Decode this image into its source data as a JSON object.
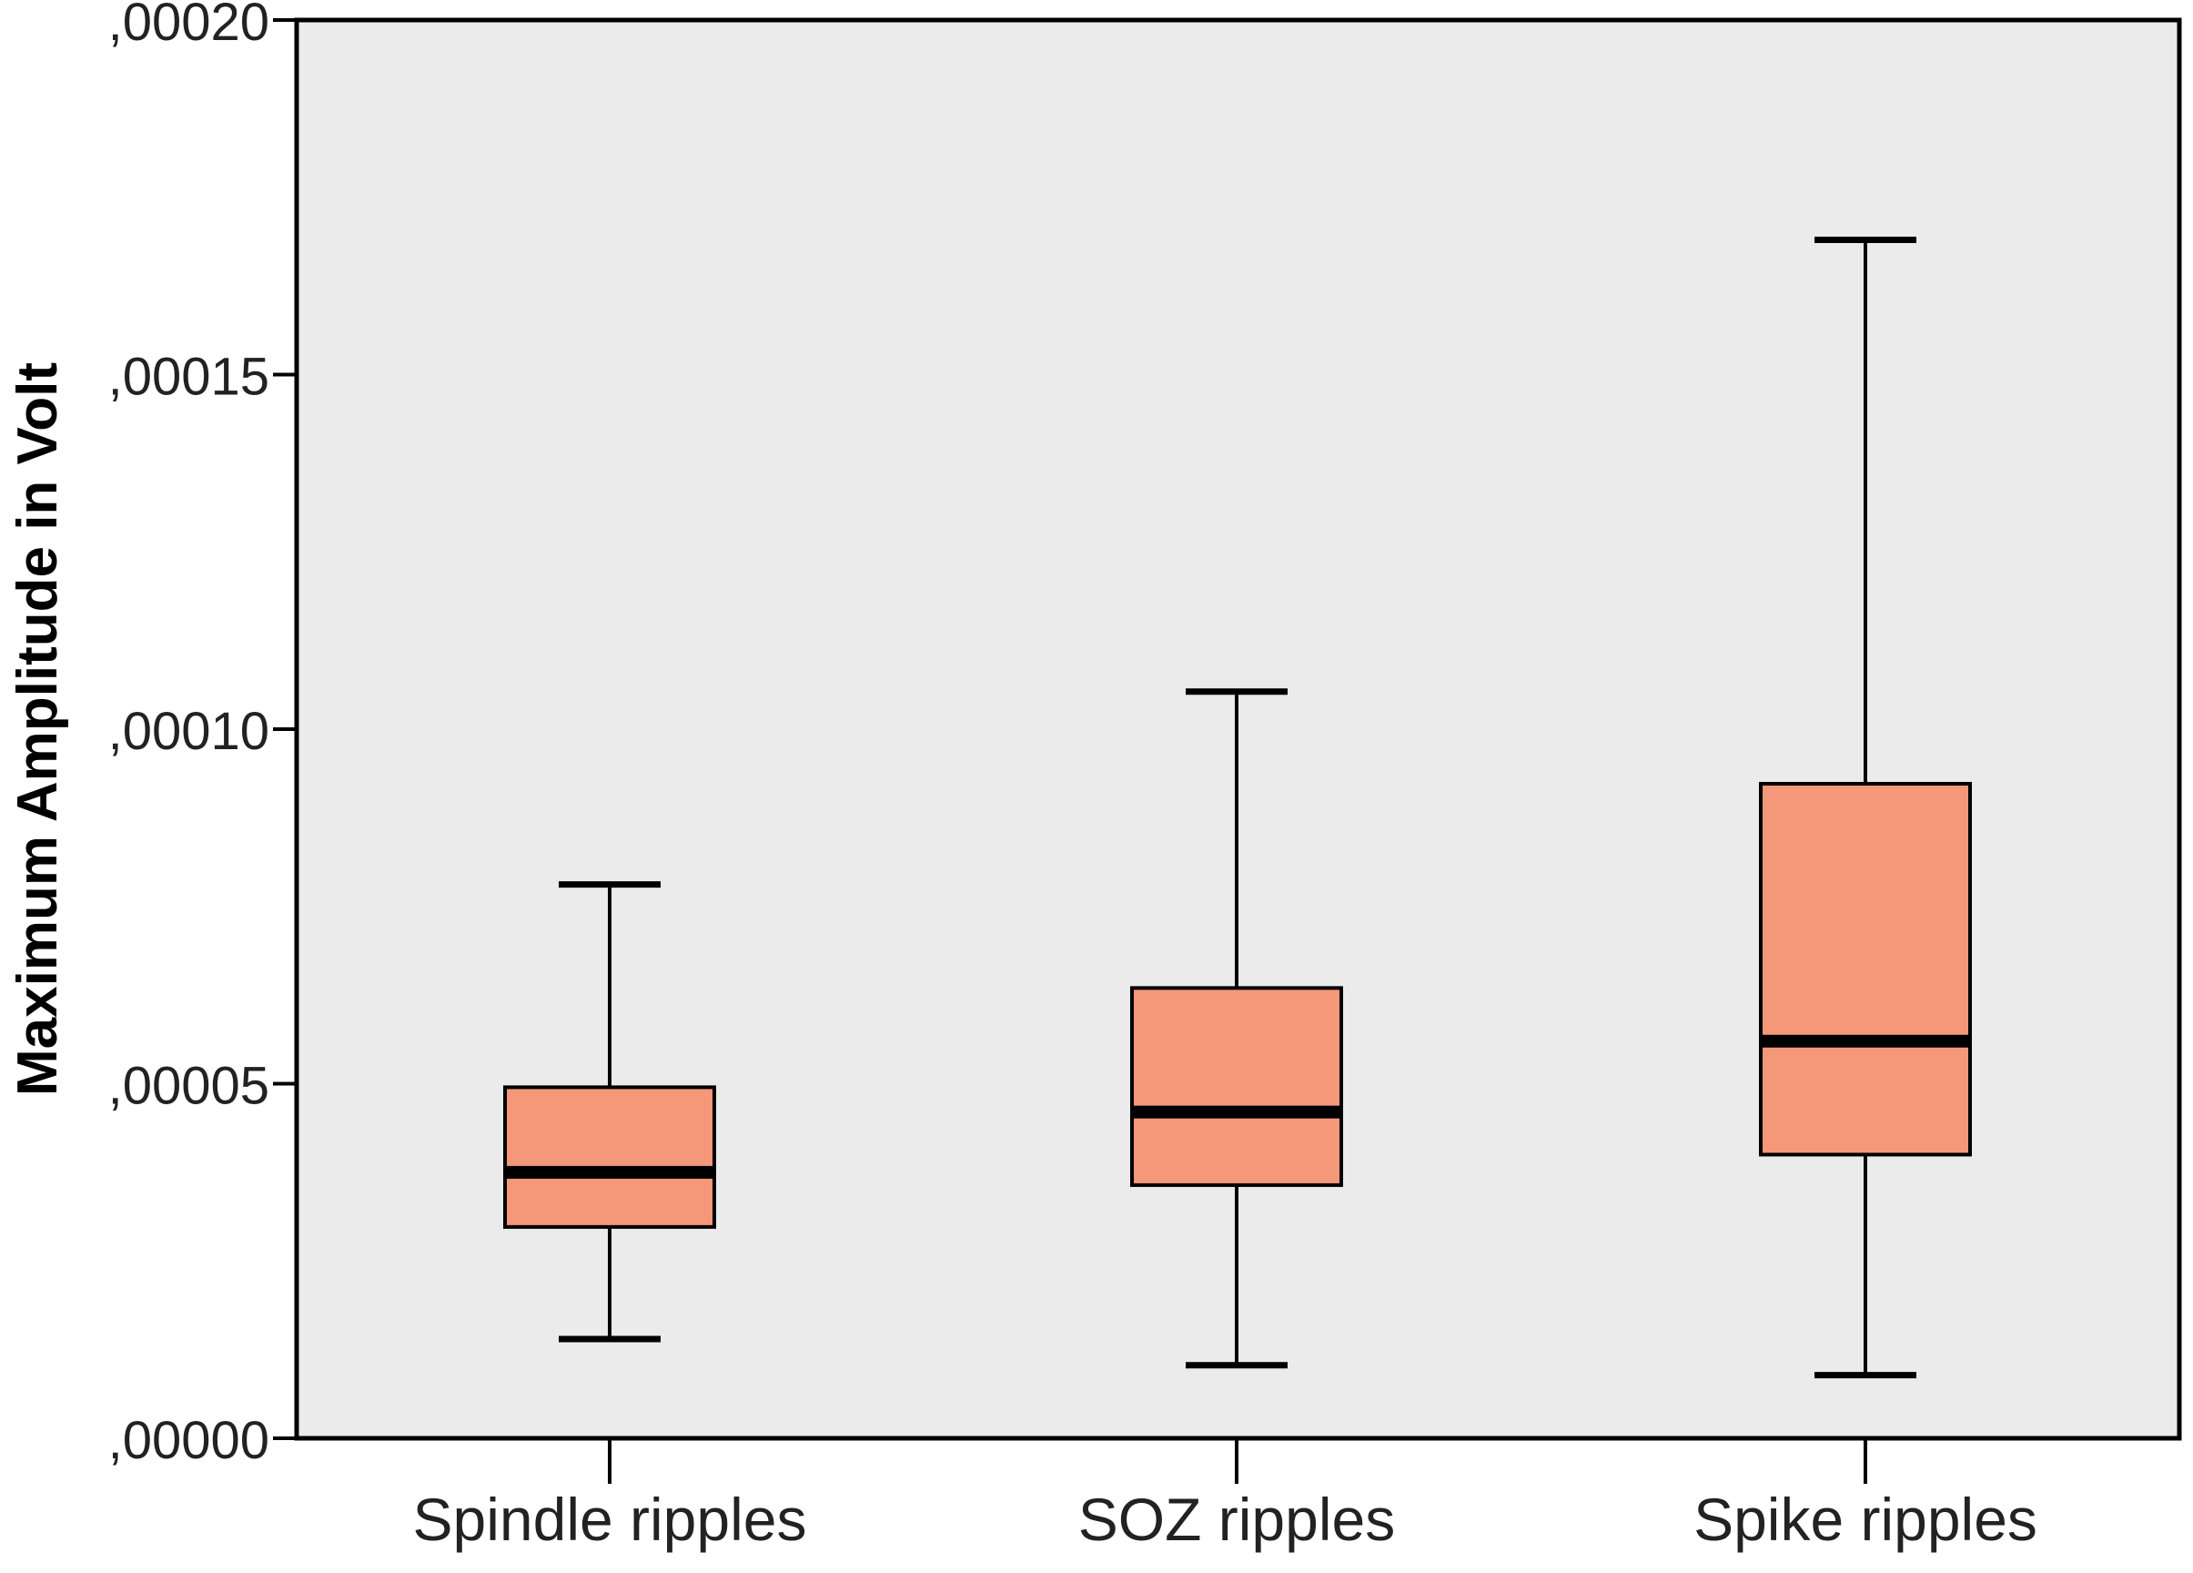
{
  "chart_data": {
    "type": "boxplot",
    "title": "",
    "xlabel": "",
    "ylabel": "Maximum Amplitude in Volt",
    "ylim": [
      0,
      0.0002
    ],
    "yticks": [
      0,
      5e-05,
      0.0001,
      0.00015,
      0.0002
    ],
    "ytick_labels": [
      ",00000",
      ",00005",
      ",00010",
      ",00015",
      ",00020"
    ],
    "categories": [
      "Spindle ripples",
      "SOZ ripples",
      "Spike ripples"
    ],
    "boxes": [
      {
        "min": 1.4e-05,
        "q1": 2.98e-05,
        "median": 3.75e-05,
        "q3": 4.95e-05,
        "max": 7.81e-05
      },
      {
        "min": 1.03e-05,
        "q1": 3.57e-05,
        "median": 4.6e-05,
        "q3": 6.35e-05,
        "max": 0.0001053
      },
      {
        "min": 8.9e-06,
        "q1": 4e-05,
        "median": 5.6e-05,
        "q3": 9.23e-05,
        "max": 0.000169
      }
    ],
    "grid": false,
    "colors": {
      "box_fill": "#F5987A",
      "plot_background": "#EBEBEB",
      "line": "#000000"
    }
  }
}
